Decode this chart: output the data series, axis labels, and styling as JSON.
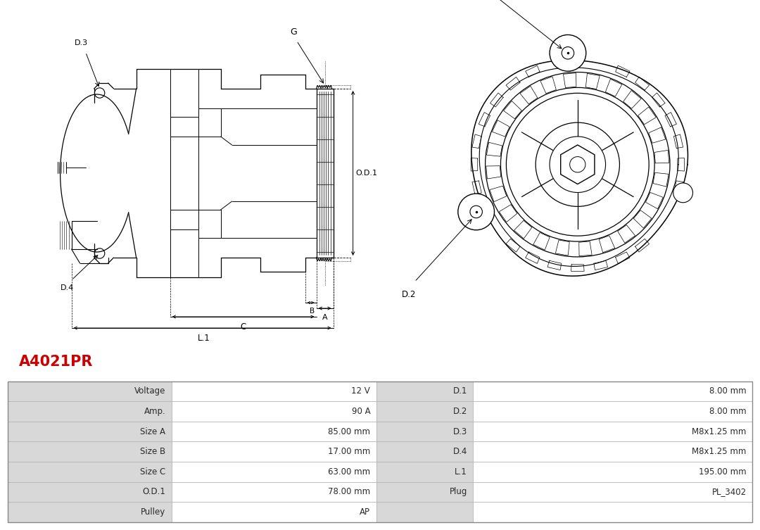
{
  "title": "A4021PR",
  "title_color": "#cc0000",
  "bg_color": "#ffffff",
  "line_color": "#000000",
  "table_bg_label": "#d8d8d8",
  "table_bg_value": "#ffffff",
  "table_rows": [
    {
      "label": "Voltage",
      "value": "12 V",
      "label2": "D.1",
      "value2": "8.00 mm"
    },
    {
      "label": "Amp.",
      "value": "90 A",
      "label2": "D.2",
      "value2": "8.00 mm"
    },
    {
      "label": "Size A",
      "value": "85.00 mm",
      "label2": "D.3",
      "value2": "M8x1.25 mm"
    },
    {
      "label": "Size B",
      "value": "17.00 mm",
      "label2": "D.4",
      "value2": "M8x1.25 mm"
    },
    {
      "label": "Size C",
      "value": "63.00 mm",
      "label2": "L.1",
      "value2": "195.00 mm"
    },
    {
      "label": "O.D.1",
      "value": "78.00 mm",
      "label2": "Plug",
      "value2": "PL_3402"
    },
    {
      "label": "Pulley",
      "value": "AP",
      "label2": "",
      "value2": ""
    }
  ]
}
